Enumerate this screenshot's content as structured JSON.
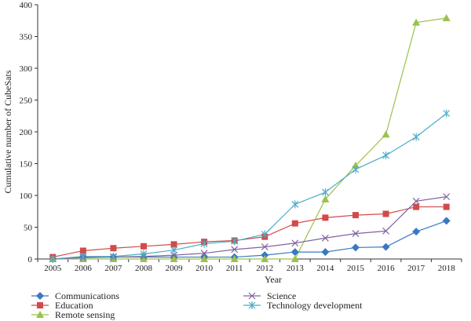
{
  "chart_data": {
    "type": "line",
    "title": "",
    "xlabel": "Year",
    "ylabel": "Cumulative number of CubeSats",
    "x": [
      "2005",
      "2006",
      "2007",
      "2008",
      "2009",
      "2010",
      "2011",
      "2012",
      "2013",
      "2014",
      "2015",
      "2016",
      "2017",
      "2018"
    ],
    "ylim": [
      0,
      400
    ],
    "yticks": [
      0,
      50,
      100,
      150,
      200,
      250,
      300,
      350,
      400
    ],
    "grid": false,
    "legend_position": "bottom",
    "series": [
      {
        "name": "Communications",
        "color": "#3a78c2",
        "marker": "diamond",
        "values": [
          0,
          3,
          3,
          3,
          3,
          3,
          3,
          6,
          11,
          11,
          18,
          19,
          43,
          60
        ]
      },
      {
        "name": "Education",
        "color": "#d34a4a",
        "marker": "square",
        "values": [
          3,
          13,
          17,
          20,
          23,
          27,
          29,
          35,
          56,
          65,
          69,
          71,
          82,
          82
        ]
      },
      {
        "name": "Remote sensing",
        "color": "#9bc24a",
        "marker": "triangle",
        "values": [
          0,
          0,
          0,
          0,
          0,
          0,
          0,
          0,
          0,
          94,
          147,
          196,
          372,
          379
        ]
      },
      {
        "name": "Science",
        "color": "#8064a2",
        "marker": "x",
        "values": [
          0,
          2,
          3,
          4,
          6,
          9,
          15,
          19,
          25,
          33,
          40,
          44,
          91,
          98
        ]
      },
      {
        "name": "Technology development",
        "color": "#4bacc6",
        "marker": "star",
        "values": [
          0,
          4,
          4,
          8,
          14,
          24,
          28,
          39,
          86,
          105,
          141,
          163,
          192,
          229
        ]
      }
    ]
  }
}
